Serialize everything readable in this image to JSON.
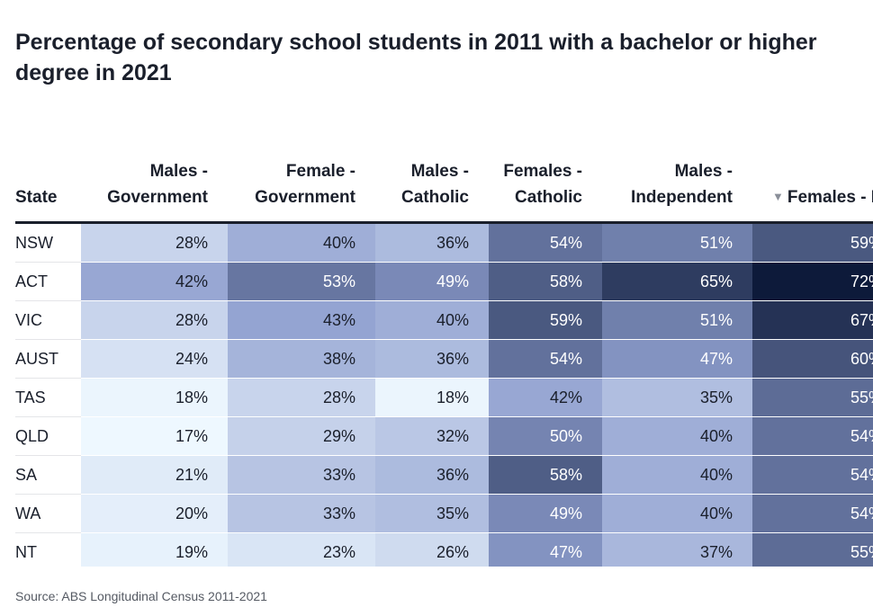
{
  "title": "Percentage of secondary school students in 2011 with a bachelor or higher degree in 2021",
  "source": "Source: ABS Longitudinal Census 2011-2021",
  "sort_icon": "sort-down-icon",
  "headers": {
    "state": "State",
    "males_government": "Males - Government",
    "female_government": "Female - Government",
    "males_catholic": "Males - Catholic",
    "females_catholic": "Females - Catholic",
    "males_independent": "Males - Independent",
    "females_independent": "Females - Independent"
  },
  "color_scale": {
    "low": "#eef8ff",
    "mid": "#8f9fcf",
    "high": "#0d1a3a",
    "min": 17,
    "max": 72
  },
  "chart_data": {
    "type": "table",
    "title": "Percentage of secondary school students in 2011 with a bachelor or higher degree in 2021",
    "columns": [
      "State",
      "Males - Government",
      "Female - Government",
      "Males - Catholic",
      "Females - Catholic",
      "Males - Independent",
      "Females - Independent"
    ],
    "sorted_by": "Females - Independent",
    "sort_order": "descending",
    "rows": [
      {
        "state": "NSW",
        "values": [
          28,
          40,
          36,
          54,
          51,
          59
        ]
      },
      {
        "state": "ACT",
        "values": [
          42,
          53,
          49,
          58,
          65,
          72
        ]
      },
      {
        "state": "VIC",
        "values": [
          28,
          43,
          40,
          59,
          51,
          67
        ]
      },
      {
        "state": "AUST",
        "values": [
          24,
          38,
          36,
          54,
          47,
          60
        ]
      },
      {
        "state": "TAS",
        "values": [
          18,
          28,
          18,
          42,
          35,
          55
        ]
      },
      {
        "state": "QLD",
        "values": [
          17,
          29,
          32,
          50,
          40,
          54
        ]
      },
      {
        "state": "SA",
        "values": [
          21,
          33,
          36,
          58,
          40,
          54
        ]
      },
      {
        "state": "WA",
        "values": [
          20,
          33,
          35,
          49,
          40,
          54
        ]
      },
      {
        "state": "NT",
        "values": [
          19,
          23,
          26,
          47,
          37,
          55
        ]
      }
    ]
  }
}
